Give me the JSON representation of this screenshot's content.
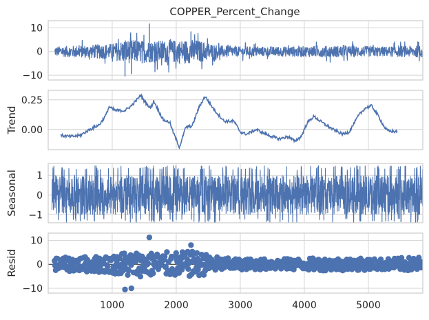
{
  "figure": {
    "title": "COPPER_Percent_Change",
    "series_color": "#4c72b0",
    "zero_line_color": "#262626"
  },
  "chart_data": [
    {
      "type": "line",
      "name": "observed",
      "title": "COPPER_Percent_Change",
      "ylabel": "",
      "x_range": [
        1,
        5850
      ],
      "ylim": [
        -12,
        13
      ],
      "yticks": [
        10,
        0,
        -10
      ],
      "ytick_labels": [
        "10",
        "0",
        "−10"
      ],
      "xticks": [
        1000,
        2000,
        3000,
        4000,
        5000
      ],
      "grid": true,
      "noise_envelope": [
        [
          100,
          2.5
        ],
        [
          1000,
          4
        ],
        [
          1200,
          6
        ],
        [
          1600,
          5.5
        ],
        [
          2300,
          6
        ],
        [
          2700,
          3
        ],
        [
          3000,
          2.5
        ],
        [
          3600,
          2.5
        ],
        [
          4500,
          3
        ],
        [
          5200,
          2.5
        ],
        [
          5850,
          3
        ]
      ],
      "peaks": [
        [
          1580,
          11.8
        ],
        [
          2230,
          8.5
        ],
        [
          1200,
          -10.5
        ],
        [
          1300,
          -9.5
        ]
      ]
    },
    {
      "type": "line",
      "name": "trend",
      "ylabel": "Trend",
      "x_range": [
        1,
        5850
      ],
      "ylim": [
        -0.17,
        0.33
      ],
      "yticks": [
        0.25,
        0.0
      ],
      "ytick_labels": [
        "0.25",
        "0.00"
      ],
      "xticks": [
        1000,
        2000,
        3000,
        4000,
        5000
      ],
      "grid": true,
      "points": [
        [
          200,
          -0.05
        ],
        [
          350,
          -0.06
        ],
        [
          500,
          -0.05
        ],
        [
          650,
          0.0
        ],
        [
          800,
          0.04
        ],
        [
          900,
          0.12
        ],
        [
          950,
          0.19
        ],
        [
          1050,
          0.16
        ],
        [
          1200,
          0.16
        ],
        [
          1300,
          0.2
        ],
        [
          1450,
          0.29
        ],
        [
          1500,
          0.24
        ],
        [
          1600,
          0.18
        ],
        [
          1650,
          0.24
        ],
        [
          1750,
          0.13
        ],
        [
          1800,
          0.08
        ],
        [
          1900,
          0.06
        ],
        [
          1950,
          -0.02
        ],
        [
          2050,
          -0.15
        ],
        [
          2150,
          0.02
        ],
        [
          2250,
          0.03
        ],
        [
          2350,
          0.18
        ],
        [
          2450,
          0.28
        ],
        [
          2600,
          0.16
        ],
        [
          2750,
          0.07
        ],
        [
          2900,
          0.07
        ],
        [
          3000,
          -0.02
        ],
        [
          3100,
          -0.04
        ],
        [
          3250,
          0.0
        ],
        [
          3400,
          -0.04
        ],
        [
          3600,
          -0.08
        ],
        [
          3750,
          -0.06
        ],
        [
          3850,
          -0.1
        ],
        [
          3950,
          -0.06
        ],
        [
          4050,
          0.06
        ],
        [
          4150,
          0.11
        ],
        [
          4300,
          0.05
        ],
        [
          4450,
          0.0
        ],
        [
          4600,
          -0.04
        ],
        [
          4700,
          -0.02
        ],
        [
          4850,
          0.12
        ],
        [
          4950,
          0.18
        ],
        [
          5050,
          0.2
        ],
        [
          5150,
          0.12
        ],
        [
          5250,
          0.02
        ],
        [
          5300,
          -0.01
        ],
        [
          5450,
          -0.02
        ]
      ]
    },
    {
      "type": "line",
      "name": "seasonal",
      "ylabel": "Seasonal",
      "x_range": [
        1,
        5850
      ],
      "ylim": [
        -1.4,
        1.6
      ],
      "yticks": [
        1,
        0,
        -1
      ],
      "ytick_labels": [
        "1",
        "0",
        "−1"
      ],
      "xticks": [
        1000,
        2000,
        3000,
        4000,
        5000
      ],
      "grid": true,
      "amplitude_range": [
        -1.4,
        1.5
      ]
    },
    {
      "type": "scatter",
      "name": "resid",
      "ylabel": "Resid",
      "x_range": [
        1,
        5850
      ],
      "ylim": [
        -12,
        13
      ],
      "yticks": [
        10,
        0,
        -10
      ],
      "ytick_labels": [
        "10",
        "0",
        "−10"
      ],
      "xticks": [
        1000,
        2000,
        3000,
        4000,
        5000
      ],
      "xtick_labels": [
        "1000",
        "2000",
        "3000",
        "4000",
        "5000"
      ],
      "grid": true,
      "zero_line": true,
      "noise_envelope": [
        [
          100,
          3
        ],
        [
          1000,
          4
        ],
        [
          1200,
          6
        ],
        [
          1600,
          5.5
        ],
        [
          2300,
          6
        ],
        [
          2700,
          3
        ],
        [
          3000,
          2.5
        ],
        [
          3600,
          2.5
        ],
        [
          4500,
          3
        ],
        [
          5200,
          2.5
        ],
        [
          5850,
          3.5
        ]
      ],
      "outliers": [
        [
          1580,
          11.2
        ],
        [
          2230,
          8
        ],
        [
          1200,
          -10.5
        ],
        [
          1300,
          -10
        ]
      ]
    }
  ]
}
